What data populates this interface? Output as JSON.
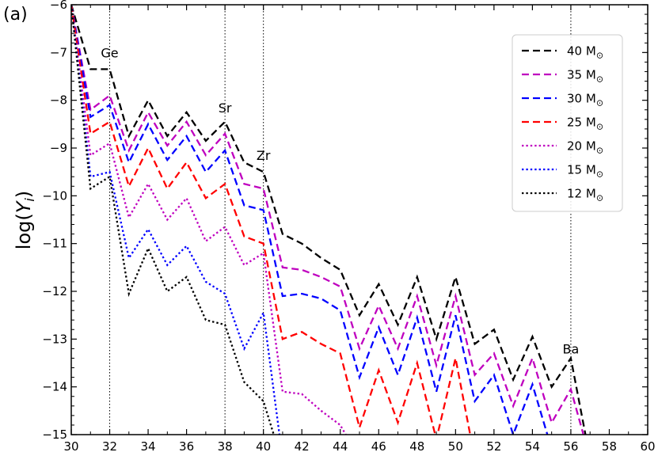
{
  "chart_data": {
    "type": "line",
    "panel_label": "(a)",
    "ylabel_base": "log(",
    "ylabel_var": "Y",
    "ylabel_sub": "i",
    "ylabel_close": ")",
    "xlim": [
      30,
      60
    ],
    "ylim": [
      -15,
      -6
    ],
    "xticks": [
      30,
      32,
      34,
      36,
      38,
      40,
      42,
      44,
      46,
      48,
      50,
      52,
      54,
      56,
      58,
      60
    ],
    "yticks": [
      -15,
      -14,
      -13,
      -12,
      -11,
      -10,
      -9,
      -8,
      -7,
      -6
    ],
    "ytick_labels": [
      "−15",
      "−14",
      "−13",
      "−12",
      "−11",
      "−10",
      "−9",
      "−8",
      "−7",
      "−6"
    ],
    "vlines": [
      {
        "x": 32,
        "label": "Ge",
        "label_y": -7.1
      },
      {
        "x": 38,
        "label": "Sr",
        "label_y": -8.25
      },
      {
        "x": 40,
        "label": "Zr",
        "label_y": -9.25
      },
      {
        "x": 56,
        "label": "Ba",
        "label_y": -13.3
      }
    ],
    "legend_position": "upper-right",
    "mass_unit": "M",
    "mass_symbol": "⊙",
    "series": [
      {
        "name": "40",
        "color": "#000000",
        "style": "dashed",
        "x": [
          30,
          31,
          32,
          33,
          34,
          35,
          36,
          37,
          38,
          39,
          40,
          41,
          42,
          43,
          44,
          45,
          46,
          47,
          48,
          49,
          50,
          51,
          52,
          53,
          54,
          55,
          56,
          57
        ],
        "y": [
          -6.0,
          -7.35,
          -7.35,
          -8.75,
          -8.0,
          -8.75,
          -8.25,
          -8.85,
          -8.45,
          -9.3,
          -9.5,
          -10.8,
          -11.0,
          -11.3,
          -11.55,
          -12.5,
          -11.85,
          -12.7,
          -11.7,
          -13.0,
          -11.7,
          -13.1,
          -12.8,
          -13.85,
          -12.95,
          -14.0,
          -13.4,
          -15.5
        ]
      },
      {
        "name": "35",
        "color": "#bf00bf",
        "style": "dashed",
        "x": [
          30,
          31,
          32,
          33,
          34,
          35,
          36,
          37,
          38,
          39,
          40,
          41,
          42,
          43,
          44,
          45,
          46,
          47,
          48,
          49,
          50,
          51,
          52,
          53,
          54,
          55,
          56,
          57
        ],
        "y": [
          -6.0,
          -8.2,
          -7.9,
          -9.05,
          -8.25,
          -8.95,
          -8.45,
          -9.15,
          -8.7,
          -9.75,
          -9.85,
          -11.5,
          -11.55,
          -11.7,
          -11.9,
          -13.2,
          -12.3,
          -13.2,
          -12.1,
          -13.55,
          -12.1,
          -13.75,
          -13.3,
          -14.4,
          -13.4,
          -14.75,
          -14.05,
          -15.5
        ]
      },
      {
        "name": "30",
        "color": "#0000ff",
        "style": "dashed",
        "x": [
          30,
          31,
          32,
          33,
          34,
          35,
          36,
          37,
          38,
          39,
          40,
          41,
          42,
          43,
          44,
          45,
          46,
          47,
          48,
          49,
          50,
          51,
          52,
          53,
          54,
          55,
          56
        ],
        "y": [
          -6.0,
          -8.35,
          -8.1,
          -9.3,
          -8.5,
          -9.25,
          -8.75,
          -9.5,
          -9.05,
          -10.2,
          -10.3,
          -12.1,
          -12.05,
          -12.15,
          -12.4,
          -13.8,
          -12.75,
          -13.75,
          -12.55,
          -14.1,
          -12.5,
          -14.3,
          -13.75,
          -15.0,
          -13.95,
          -15.3,
          -15.3
        ]
      },
      {
        "name": "25",
        "color": "#ff0000",
        "style": "dashed",
        "x": [
          30,
          31,
          32,
          33,
          34,
          35,
          36,
          37,
          38,
          39,
          40,
          41,
          42,
          43,
          44,
          45,
          46,
          47,
          48,
          49,
          50,
          51
        ],
        "y": [
          -6.0,
          -8.7,
          -8.45,
          -9.8,
          -9.0,
          -9.85,
          -9.3,
          -10.05,
          -9.75,
          -10.85,
          -11.0,
          -13.0,
          -12.85,
          -13.1,
          -13.3,
          -14.85,
          -13.65,
          -14.75,
          -13.5,
          -15.1,
          -13.4,
          -15.5
        ]
      },
      {
        "name": "20",
        "color": "#bf00bf",
        "style": "dotted",
        "x": [
          30,
          31,
          32,
          33,
          34,
          35,
          36,
          37,
          38,
          39,
          40,
          41,
          42,
          43,
          44,
          45
        ],
        "y": [
          -6.0,
          -9.15,
          -8.9,
          -10.45,
          -9.75,
          -10.5,
          -10.05,
          -10.95,
          -10.65,
          -11.45,
          -11.2,
          -14.1,
          -14.15,
          -14.5,
          -14.8,
          -15.5
        ]
      },
      {
        "name": "15",
        "color": "#0000ff",
        "style": "dotted",
        "x": [
          30,
          31,
          32,
          33,
          34,
          35,
          36,
          37,
          38,
          39,
          40,
          41
        ],
        "y": [
          -6.0,
          -9.6,
          -9.5,
          -11.3,
          -10.7,
          -11.45,
          -11.05,
          -11.8,
          -12.05,
          -13.2,
          -12.45,
          -15.5
        ]
      },
      {
        "name": "12",
        "color": "#000000",
        "style": "dotted",
        "x": [
          30,
          31,
          32,
          33,
          34,
          35,
          36,
          37,
          38,
          39,
          40,
          41
        ],
        "y": [
          -6.0,
          -9.85,
          -9.6,
          -12.05,
          -11.1,
          -12.0,
          -11.7,
          -12.6,
          -12.7,
          -13.9,
          -14.3,
          -15.6
        ]
      }
    ]
  }
}
